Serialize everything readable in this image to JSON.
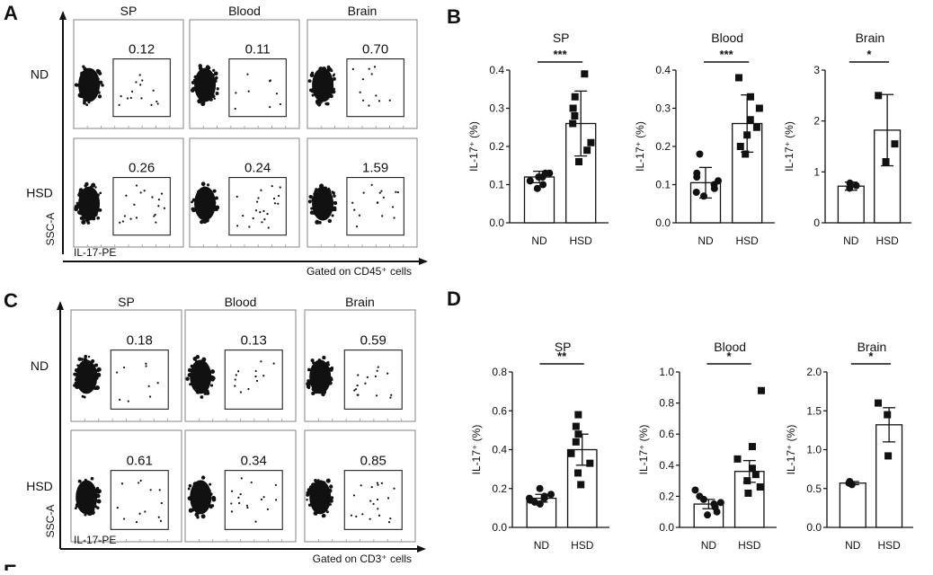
{
  "figure": {
    "panel_labels": [
      "A",
      "B",
      "C",
      "D",
      "E"
    ],
    "flow_A": {
      "columns": [
        "SP",
        "Blood",
        "Brain"
      ],
      "rows": [
        "ND",
        "HSD"
      ],
      "values": [
        [
          "0.12",
          "0.11",
          "0.70"
        ],
        [
          "0.26",
          "0.24",
          "1.59"
        ]
      ],
      "y_label": "SSC-A",
      "x_label": "IL-17-PE",
      "gate_text": "Gated on CD45⁺ cells"
    },
    "flow_C": {
      "columns": [
        "SP",
        "Blood",
        "Brain"
      ],
      "rows": [
        "ND",
        "HSD"
      ],
      "values": [
        [
          "0.18",
          "0.13",
          "0.59"
        ],
        [
          "0.61",
          "0.34",
          "0.85"
        ]
      ],
      "y_label": "SSC-A",
      "x_label": "IL-17-PE",
      "gate_text": "Gated on CD3⁺ cells"
    }
  },
  "chart_data": [
    {
      "panel": "B",
      "type": "bar",
      "title": "SP",
      "ylabel": "IL-17⁺ (%)",
      "categories": [
        "ND",
        "HSD"
      ],
      "yticks": [
        "0.0",
        "0.1",
        "0.2",
        "0.3",
        "0.4"
      ],
      "ylim": [
        0,
        0.4
      ],
      "significance": "***",
      "values": [
        0.12,
        0.26
      ],
      "errors": [
        0.015,
        0.085
      ],
      "points": [
        [
          0.09,
          0.1,
          0.11,
          0.11,
          0.12,
          0.12,
          0.13,
          0.13
        ],
        [
          0.16,
          0.19,
          0.21,
          0.26,
          0.28,
          0.3,
          0.33,
          0.39
        ]
      ]
    },
    {
      "panel": "B",
      "type": "bar",
      "title": "Blood",
      "ylabel": "IL-17⁺ (%)",
      "categories": [
        "ND",
        "HSD"
      ],
      "yticks": [
        "0.0",
        "0.1",
        "0.2",
        "0.3",
        "0.4"
      ],
      "ylim": [
        0,
        0.4
      ],
      "significance": "***",
      "values": [
        0.105,
        0.26
      ],
      "errors": [
        0.04,
        0.075
      ],
      "points": [
        [
          0.07,
          0.08,
          0.09,
          0.1,
          0.11,
          0.12,
          0.13,
          0.18
        ],
        [
          0.18,
          0.2,
          0.23,
          0.25,
          0.27,
          0.3,
          0.33,
          0.38
        ]
      ]
    },
    {
      "panel": "B",
      "type": "bar",
      "title": "Brain",
      "ylabel": "IL-17⁺ (%)",
      "categories": [
        "ND",
        "HSD"
      ],
      "yticks": [
        "0",
        "1",
        "2",
        "3"
      ],
      "ylim": [
        0,
        3
      ],
      "significance": "*",
      "values": [
        0.72,
        1.82
      ],
      "errors": [
        0.08,
        0.7
      ],
      "points": [
        [
          0.68,
          0.73,
          0.78
        ],
        [
          1.2,
          1.55,
          2.5
        ]
      ]
    },
    {
      "panel": "D",
      "type": "bar",
      "title": "SP",
      "ylabel": "IL-17⁺ (%)",
      "categories": [
        "ND",
        "HSD"
      ],
      "yticks": [
        "0.0",
        "0.2",
        "0.4",
        "0.6",
        "0.8"
      ],
      "ylim": [
        0,
        0.8
      ],
      "significance": "**",
      "values": [
        0.15,
        0.4
      ],
      "errors": [
        0.02,
        0.08
      ],
      "points": [
        [
          0.12,
          0.13,
          0.14,
          0.15,
          0.15,
          0.16,
          0.17,
          0.2
        ],
        [
          0.22,
          0.28,
          0.33,
          0.38,
          0.44,
          0.48,
          0.52,
          0.58
        ]
      ]
    },
    {
      "panel": "D",
      "type": "bar",
      "title": "Blood",
      "ylabel": "IL-17⁺ (%)",
      "categories": [
        "ND",
        "HSD"
      ],
      "yticks": [
        "0.0",
        "0.2",
        "0.4",
        "0.6",
        "0.8",
        "1.0"
      ],
      "ylim": [
        0,
        1.0
      ],
      "significance": "*",
      "values": [
        0.15,
        0.36
      ],
      "errors": [
        0.03,
        0.07
      ],
      "points": [
        [
          0.08,
          0.1,
          0.13,
          0.15,
          0.16,
          0.18,
          0.2,
          0.24
        ],
        [
          0.22,
          0.26,
          0.3,
          0.34,
          0.38,
          0.44,
          0.52,
          0.88
        ]
      ]
    },
    {
      "panel": "D",
      "type": "bar",
      "title": "Brain",
      "ylabel": "IL-17⁺ (%)",
      "categories": [
        "ND",
        "HSD"
      ],
      "yticks": [
        "0.0",
        "0.5",
        "1.0",
        "1.5",
        "2.0"
      ],
      "ylim": [
        0,
        2.0
      ],
      "significance": "*",
      "values": [
        0.57,
        1.32
      ],
      "errors": [
        0.02,
        0.22
      ],
      "points": [
        [
          0.55,
          0.57,
          0.59
        ],
        [
          0.92,
          1.45,
          1.6
        ]
      ]
    }
  ]
}
